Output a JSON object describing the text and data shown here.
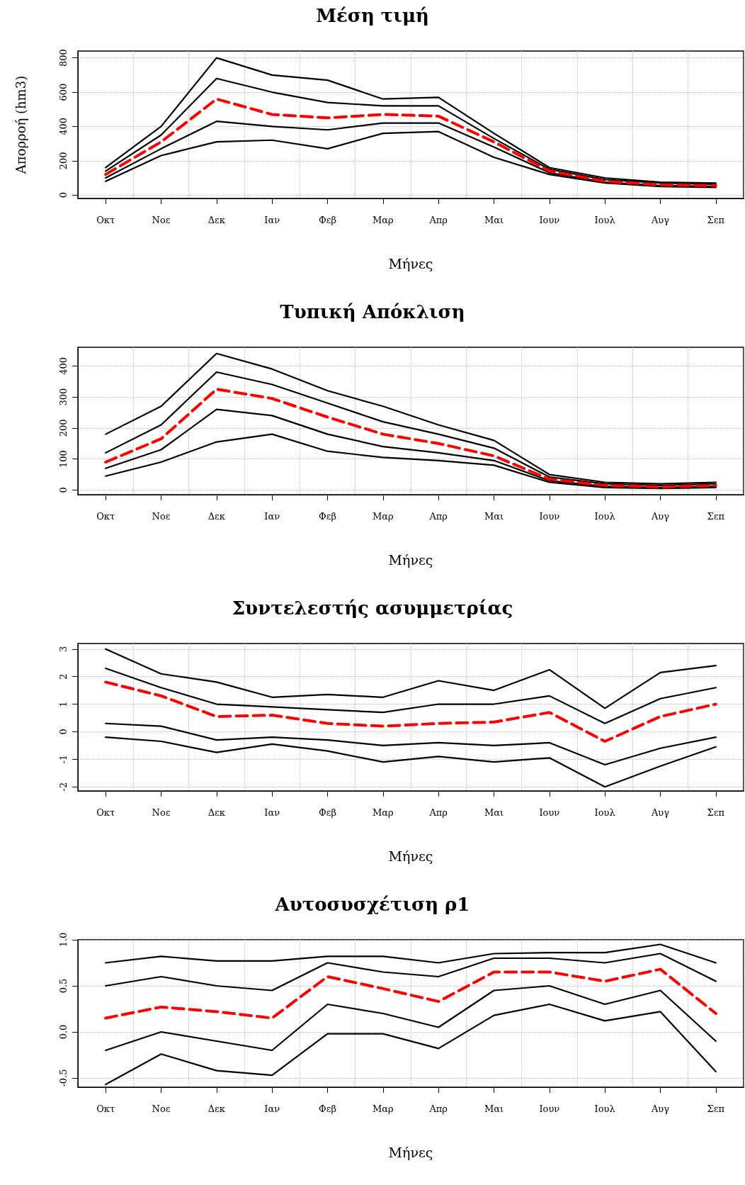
{
  "chart_data": [
    {
      "type": "line",
      "title": "Μέση τιμή",
      "xlabel": "Μήνες",
      "ylabel": "Απορροή (hm3)",
      "categories": [
        "Οκτ",
        "Νοε",
        "Δεκ",
        "Ιαν",
        "Φεβ",
        "Μαρ",
        "Απρ",
        "Μαι",
        "Ιουν",
        "Ιουλ",
        "Αυγ",
        "Σεπ"
      ],
      "ylim": [
        -20,
        840
      ],
      "yticks": [
        0,
        200,
        400,
        600,
        800
      ],
      "grid": true,
      "marker": "none",
      "series": [
        {
          "color": "#000000",
          "line_style": "solid",
          "values": [
            160,
            400,
            800,
            700,
            670,
            560,
            570,
            360,
            160,
            100,
            75,
            70
          ]
        },
        {
          "color": "#000000",
          "line_style": "solid",
          "values": [
            140,
            350,
            680,
            600,
            540,
            520,
            520,
            330,
            150,
            90,
            70,
            62
          ]
        },
        {
          "color": "#000000",
          "line_style": "solid",
          "values": [
            100,
            270,
            430,
            400,
            380,
            420,
            420,
            280,
            130,
            75,
            55,
            50
          ]
        },
        {
          "color": "#000000",
          "line_style": "solid",
          "values": [
            80,
            230,
            310,
            320,
            270,
            360,
            370,
            220,
            120,
            70,
            50,
            45
          ]
        },
        {
          "color": "#ff0000",
          "line_style": "dashed",
          "values": [
            120,
            310,
            560,
            470,
            450,
            470,
            460,
            310,
            140,
            80,
            60,
            55
          ]
        }
      ]
    },
    {
      "type": "line",
      "title": "Τυπική Απόκλιση",
      "xlabel": "Μήνες",
      "categories": [
        "Οκτ",
        "Νοε",
        "Δεκ",
        "Ιαν",
        "Φεβ",
        "Μαρ",
        "Απρ",
        "Μαι",
        "Ιουν",
        "Ιουλ",
        "Αυγ",
        "Σεπ"
      ],
      "ylim": [
        -15,
        460
      ],
      "yticks": [
        0,
        100,
        200,
        300,
        400
      ],
      "grid": true,
      "marker": "none",
      "series": [
        {
          "color": "#000000",
          "line_style": "solid",
          "values": [
            180,
            270,
            440,
            390,
            320,
            270,
            210,
            160,
            50,
            25,
            20,
            25
          ]
        },
        {
          "color": "#000000",
          "line_style": "solid",
          "values": [
            120,
            210,
            380,
            340,
            280,
            220,
            180,
            135,
            42,
            20,
            15,
            20
          ]
        },
        {
          "color": "#000000",
          "line_style": "solid",
          "values": [
            70,
            130,
            260,
            240,
            180,
            140,
            120,
            95,
            30,
            12,
            8,
            12
          ]
        },
        {
          "color": "#000000",
          "line_style": "solid",
          "values": [
            45,
            90,
            155,
            180,
            125,
            105,
            95,
            80,
            25,
            8,
            5,
            8
          ]
        },
        {
          "color": "#ff0000",
          "line_style": "dashed",
          "values": [
            90,
            165,
            325,
            295,
            235,
            180,
            150,
            110,
            35,
            15,
            10,
            15
          ]
        }
      ]
    },
    {
      "type": "line",
      "title": "Συντελεστής ασυμμετρίας",
      "xlabel": "Μήνες",
      "categories": [
        "Οκτ",
        "Νοε",
        "Δεκ",
        "Ιαν",
        "Φεβ",
        "Μαρ",
        "Απρ",
        "Μαι",
        "Ιουν",
        "Ιουλ",
        "Αυγ",
        "Σεπ"
      ],
      "ylim": [
        -2.15,
        3.2
      ],
      "yticks": [
        -2,
        -1,
        0,
        1,
        2,
        3
      ],
      "grid": true,
      "marker": "none",
      "series": [
        {
          "color": "#000000",
          "line_style": "solid",
          "values": [
            3.0,
            2.1,
            1.8,
            1.25,
            1.35,
            1.25,
            1.85,
            1.5,
            2.25,
            0.85,
            2.15,
            2.4
          ]
        },
        {
          "color": "#000000",
          "line_style": "solid",
          "values": [
            2.3,
            1.6,
            1.0,
            0.9,
            0.8,
            0.7,
            1.0,
            1.0,
            1.3,
            0.3,
            1.2,
            1.6
          ]
        },
        {
          "color": "#000000",
          "line_style": "solid",
          "values": [
            0.3,
            0.2,
            -0.3,
            -0.2,
            -0.3,
            -0.5,
            -0.4,
            -0.5,
            -0.4,
            -1.2,
            -0.6,
            -0.2
          ]
        },
        {
          "color": "#000000",
          "line_style": "solid",
          "values": [
            -0.2,
            -0.35,
            -0.75,
            -0.45,
            -0.7,
            -1.1,
            -0.9,
            -1.1,
            -0.95,
            -2.0,
            -1.25,
            -0.55
          ]
        },
        {
          "color": "#ff0000",
          "line_style": "dashed",
          "values": [
            1.8,
            1.3,
            0.55,
            0.6,
            0.3,
            0.2,
            0.3,
            0.35,
            0.7,
            -0.35,
            0.55,
            1.0
          ]
        }
      ]
    },
    {
      "type": "line",
      "title": "Αυτοσυσχέτιση ρ1",
      "xlabel": "Μήνες",
      "categories": [
        "Οκτ",
        "Νοε",
        "Δεκ",
        "Ιαν",
        "Φεβ",
        "Μαρ",
        "Απρ",
        "Μαι",
        "Ιουν",
        "Ιουλ",
        "Αυγ",
        "Σεπ"
      ],
      "ylim": [
        -0.6,
        1.0
      ],
      "yticks": [
        {
          "value": -0.5,
          "label": "-0.5"
        },
        {
          "value": 0,
          "label": "0.0"
        },
        {
          "value": 0.5,
          "label": "0.5"
        },
        {
          "value": 1,
          "label": "1.0"
        }
      ],
      "grid": true,
      "marker": "none",
      "series": [
        {
          "color": "#000000",
          "line_style": "solid",
          "values": [
            0.75,
            0.82,
            0.77,
            0.77,
            0.82,
            0.82,
            0.75,
            0.85,
            0.86,
            0.86,
            0.95,
            0.75
          ]
        },
        {
          "color": "#000000",
          "line_style": "solid",
          "values": [
            0.5,
            0.6,
            0.5,
            0.45,
            0.75,
            0.65,
            0.6,
            0.8,
            0.8,
            0.75,
            0.85,
            0.55
          ]
        },
        {
          "color": "#000000",
          "line_style": "solid",
          "values": [
            -0.2,
            0.0,
            -0.1,
            -0.2,
            0.3,
            0.2,
            0.05,
            0.45,
            0.5,
            0.3,
            0.45,
            -0.1
          ]
        },
        {
          "color": "#000000",
          "line_style": "solid",
          "values": [
            -0.57,
            -0.24,
            -0.42,
            -0.47,
            -0.02,
            -0.02,
            -0.18,
            0.18,
            0.3,
            0.12,
            0.22,
            -0.43
          ]
        },
        {
          "color": "#ff0000",
          "line_style": "dashed",
          "values": [
            0.15,
            0.27,
            0.22,
            0.15,
            0.6,
            0.47,
            0.33,
            0.65,
            0.65,
            0.55,
            0.68,
            0.2
          ]
        }
      ]
    }
  ]
}
